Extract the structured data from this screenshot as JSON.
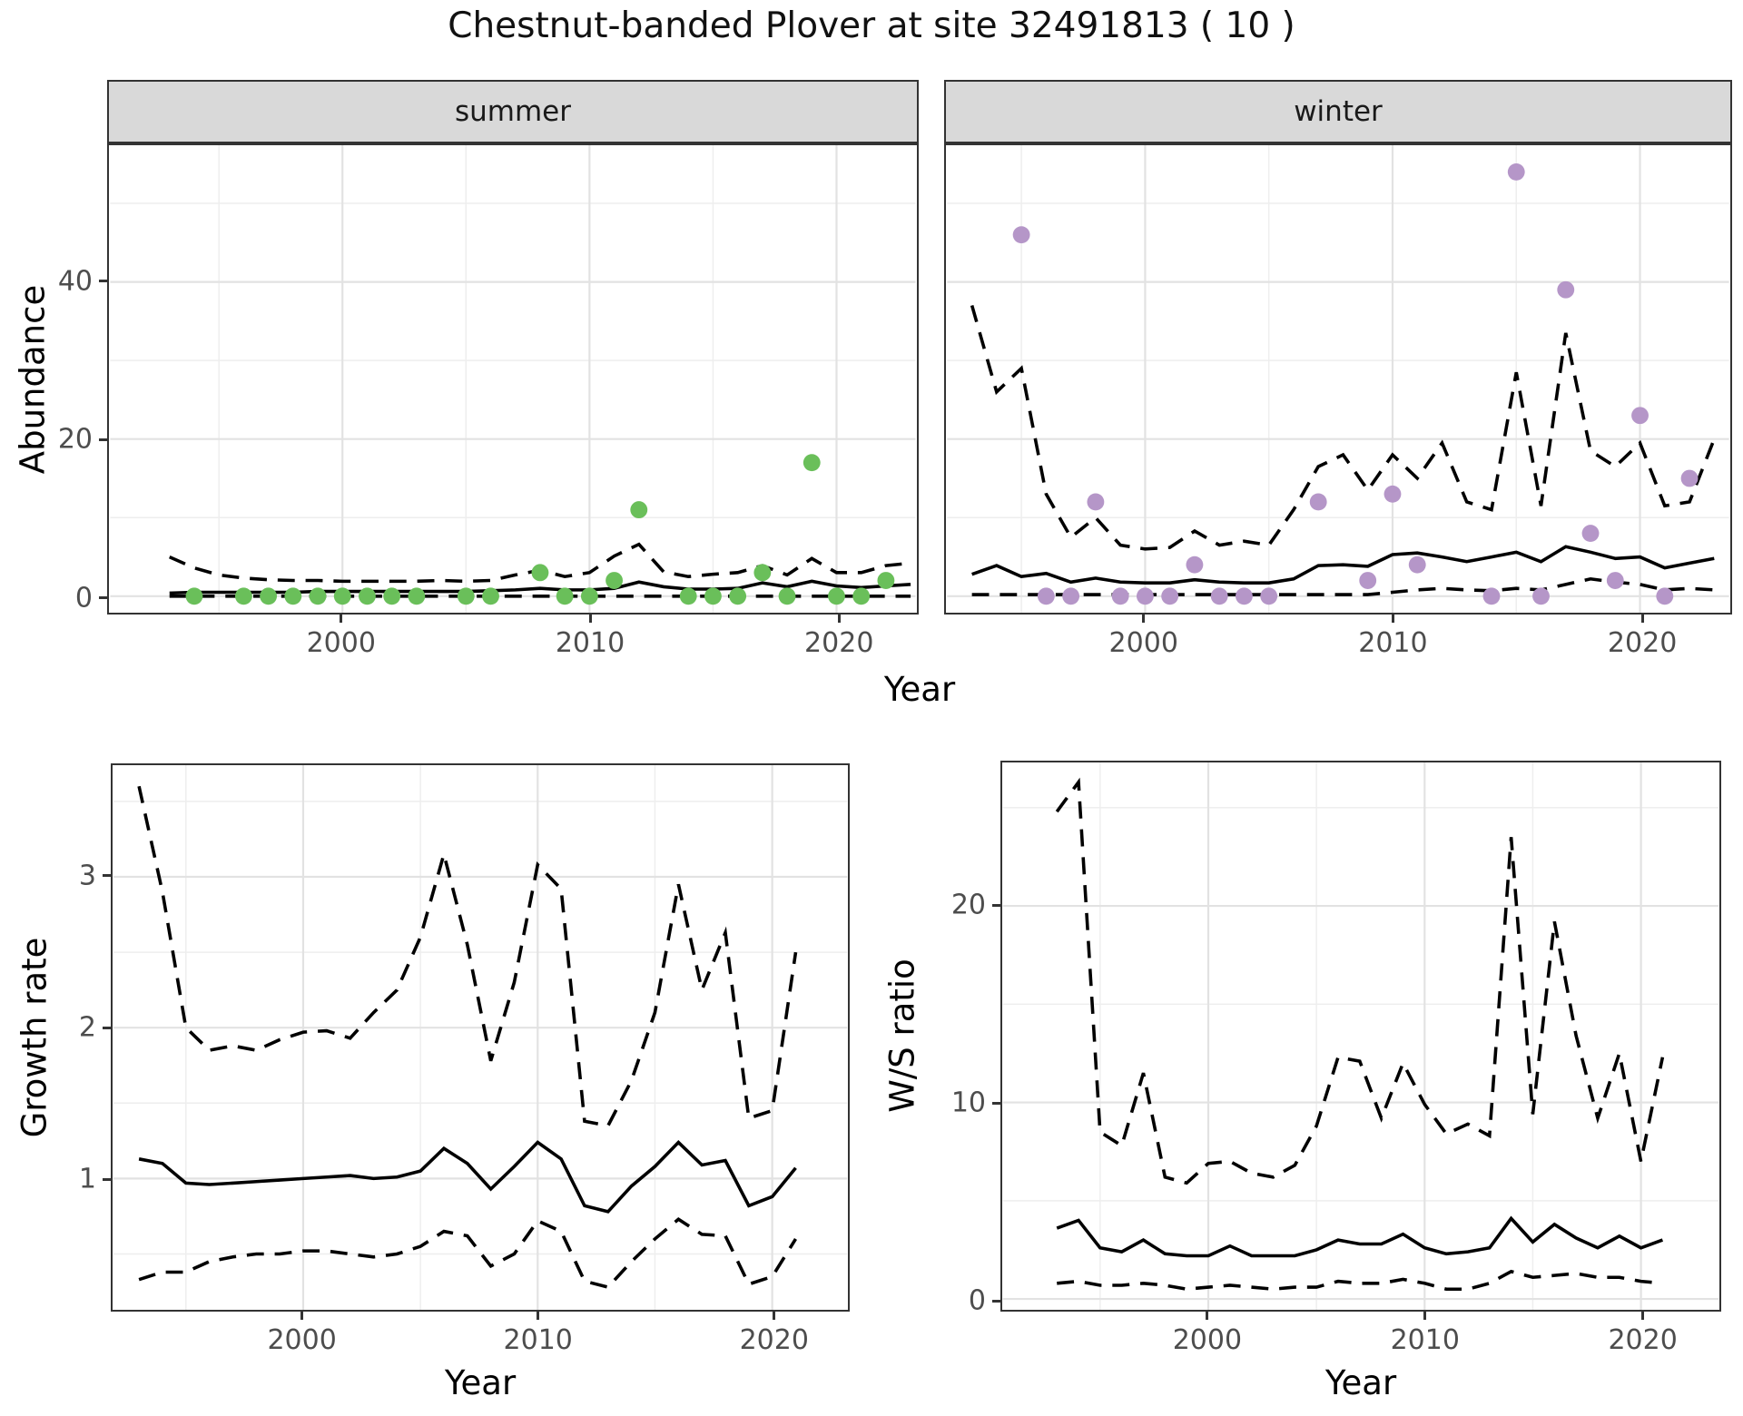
{
  "title": "Chestnut-banded Plover at site 32491813 ( 10 )",
  "axes": {
    "top_y_label": "Abundance",
    "top_x_label": "Year",
    "bottom_left_y_label": "Growth rate",
    "bottom_left_x_label": "Year",
    "bottom_right_y_label": "W/S ratio",
    "bottom_right_x_label": "Year"
  },
  "facets": {
    "left": "summer",
    "right": "winter"
  },
  "colors": {
    "summer_point": "#6abf5a",
    "winter_point": "#b596c8",
    "line": "#000000",
    "grid_major": "#e2e2e2",
    "grid_minor": "#eeeeee",
    "strip_bg": "#d9d9d9",
    "panel_border": "#333333",
    "axis_text": "#4d4d4d"
  },
  "chart_data": [
    {
      "id": "summer",
      "type": "line",
      "facet_label": "summer",
      "x_label": "Year",
      "y_label": "Abundance",
      "xlim": [
        1990.6,
        2023.2
      ],
      "ylim": [
        -2.1,
        57.4
      ],
      "x_ticks": [
        2000,
        2010,
        2020
      ],
      "x_minor": [
        1995,
        2005,
        2015
      ],
      "y_ticks": [
        0,
        20,
        40
      ],
      "y_minor": [
        10,
        30,
        50
      ],
      "line_years": [
        1993,
        1994,
        1995,
        1996,
        1997,
        1998,
        1999,
        2000,
        2001,
        2002,
        2003,
        2004,
        2005,
        2006,
        2007,
        2008,
        2009,
        2010,
        2011,
        2012,
        2013,
        2014,
        2015,
        2016,
        2017,
        2018,
        2019,
        2020,
        2021,
        2022,
        2023
      ],
      "median": [
        0.4,
        0.5,
        0.5,
        0.5,
        0.5,
        0.5,
        0.6,
        0.6,
        0.6,
        0.6,
        0.6,
        0.6,
        0.6,
        0.7,
        0.8,
        1.0,
        0.8,
        0.8,
        1.0,
        1.8,
        1.2,
        0.9,
        0.9,
        1.0,
        1.7,
        1.2,
        1.9,
        1.3,
        1.1,
        1.3,
        1.5
      ],
      "upper": [
        5.0,
        3.6,
        2.7,
        2.3,
        2.1,
        2.0,
        2.0,
        1.9,
        1.9,
        1.9,
        1.9,
        2.0,
        1.9,
        2.0,
        2.7,
        3.3,
        2.5,
        3.0,
        5.1,
        6.6,
        3.1,
        2.5,
        2.8,
        3.0,
        3.9,
        2.7,
        4.8,
        3.0,
        3.0,
        3.9,
        4.2
      ],
      "lower": [
        0,
        0,
        0,
        0,
        0,
        0,
        0,
        0,
        0,
        0,
        0,
        0,
        0,
        0,
        0,
        0,
        0,
        0,
        0,
        0,
        0,
        0,
        0,
        0,
        0,
        0,
        0,
        0,
        0,
        0,
        0
      ],
      "points": [
        [
          1994,
          0
        ],
        [
          1996,
          0
        ],
        [
          1997,
          0
        ],
        [
          1998,
          0
        ],
        [
          1999,
          0
        ],
        [
          2000,
          0
        ],
        [
          2001,
          0
        ],
        [
          2002,
          0
        ],
        [
          2003,
          0
        ],
        [
          2005,
          0
        ],
        [
          2006,
          0
        ],
        [
          2008,
          3
        ],
        [
          2009,
          0
        ],
        [
          2010,
          0
        ],
        [
          2011,
          2
        ],
        [
          2012,
          11
        ],
        [
          2014,
          0
        ],
        [
          2015,
          0
        ],
        [
          2016,
          0
        ],
        [
          2017,
          3
        ],
        [
          2018,
          0
        ],
        [
          2019,
          17
        ],
        [
          2020,
          0
        ],
        [
          2021,
          0
        ],
        [
          2022,
          2
        ]
      ],
      "point_color": "#6abf5a"
    },
    {
      "id": "winter",
      "type": "line",
      "facet_label": "winter",
      "x_label": "Year",
      "y_label": "Abundance",
      "xlim": [
        1992.0,
        2023.6
      ],
      "ylim": [
        -2.1,
        57.4
      ],
      "x_ticks": [
        2000,
        2010,
        2020
      ],
      "x_minor": [
        1995,
        2005,
        2015
      ],
      "y_ticks": [
        0,
        20,
        40
      ],
      "y_minor": [
        10,
        30,
        50
      ],
      "line_years": [
        1993,
        1994,
        1995,
        1996,
        1997,
        1998,
        1999,
        2000,
        2001,
        2002,
        2003,
        2004,
        2005,
        2006,
        2007,
        2008,
        2009,
        2010,
        2011,
        2012,
        2013,
        2014,
        2015,
        2016,
        2017,
        2018,
        2019,
        2020,
        2021,
        2022,
        2023
      ],
      "median": [
        2.8,
        3.9,
        2.5,
        2.9,
        1.8,
        2.3,
        1.8,
        1.7,
        1.7,
        2.1,
        1.8,
        1.7,
        1.7,
        2.2,
        3.9,
        4.0,
        3.8,
        5.3,
        5.5,
        5.0,
        4.4,
        5.0,
        5.6,
        4.4,
        6.3,
        5.6,
        4.8,
        5.0,
        3.6,
        4.2,
        4.8
      ],
      "upper": [
        37,
        26,
        29,
        13,
        7.5,
        10,
        6.5,
        6.0,
        6.2,
        8.3,
        6.5,
        7.0,
        6.5,
        11,
        16.5,
        18,
        13.5,
        18,
        15,
        19.5,
        12,
        11,
        28.5,
        11.5,
        33.5,
        18.5,
        16.5,
        19.5,
        11.5,
        12,
        20
      ],
      "lower": [
        0.2,
        0.2,
        0.2,
        0.2,
        0.2,
        0.2,
        0.2,
        0.2,
        0.2,
        0.2,
        0.2,
        0.2,
        0.2,
        0.2,
        0.2,
        0.2,
        0.2,
        0.5,
        0.8,
        1.0,
        0.8,
        0.7,
        1.0,
        0.8,
        1.5,
        2.2,
        1.8,
        1.5,
        0.8,
        1.0,
        0.8
      ],
      "points": [
        [
          1995,
          46
        ],
        [
          1996,
          0
        ],
        [
          1997,
          0
        ],
        [
          1998,
          12
        ],
        [
          1999,
          0
        ],
        [
          2000,
          0
        ],
        [
          2001,
          0
        ],
        [
          2002,
          4
        ],
        [
          2003,
          0
        ],
        [
          2004,
          0
        ],
        [
          2005,
          0
        ],
        [
          2007,
          12
        ],
        [
          2009,
          2
        ],
        [
          2010,
          13
        ],
        [
          2011,
          4
        ],
        [
          2014,
          0
        ],
        [
          2015,
          54
        ],
        [
          2016,
          0
        ],
        [
          2017,
          39
        ],
        [
          2018,
          8
        ],
        [
          2019,
          2
        ],
        [
          2020,
          23
        ],
        [
          2021,
          0
        ],
        [
          2022,
          15
        ]
      ],
      "point_color": "#b596c8"
    },
    {
      "id": "growth",
      "type": "line",
      "facet_label": null,
      "x_label": "Year",
      "y_label": "Growth rate",
      "xlim": [
        1991.9,
        2023.2
      ],
      "ylim": [
        0.13,
        3.74
      ],
      "x_ticks": [
        2000,
        2010,
        2020
      ],
      "x_minor": [
        1995,
        2005,
        2015
      ],
      "y_ticks": [
        1,
        2,
        3
      ],
      "y_minor": [
        0.5,
        1.5,
        2.5,
        3.5
      ],
      "line_years": [
        1993,
        1994,
        1995,
        1996,
        1997,
        1998,
        1999,
        2000,
        2001,
        2002,
        2003,
        2004,
        2005,
        2006,
        2007,
        2008,
        2009,
        2010,
        2011,
        2012,
        2013,
        2014,
        2015,
        2016,
        2017,
        2018,
        2019,
        2020,
        2021
      ],
      "median": [
        1.13,
        1.1,
        0.97,
        0.96,
        0.97,
        0.98,
        0.99,
        1.0,
        1.01,
        1.02,
        1.0,
        1.01,
        1.05,
        1.2,
        1.1,
        0.93,
        1.08,
        1.24,
        1.13,
        0.82,
        0.78,
        0.95,
        1.08,
        1.24,
        1.09,
        1.12,
        0.82,
        0.88,
        1.07
      ],
      "upper": [
        3.6,
        2.9,
        2.0,
        1.85,
        1.88,
        1.85,
        1.92,
        1.97,
        1.98,
        1.93,
        2.1,
        2.25,
        2.6,
        3.15,
        2.55,
        1.78,
        2.3,
        3.08,
        2.92,
        1.38,
        1.35,
        1.65,
        2.1,
        2.95,
        2.25,
        2.63,
        1.4,
        1.45,
        2.5
      ],
      "lower": [
        0.33,
        0.38,
        0.38,
        0.45,
        0.48,
        0.5,
        0.5,
        0.52,
        0.52,
        0.5,
        0.48,
        0.5,
        0.55,
        0.65,
        0.62,
        0.42,
        0.5,
        0.72,
        0.65,
        0.32,
        0.28,
        0.45,
        0.6,
        0.73,
        0.63,
        0.62,
        0.3,
        0.35,
        0.6
      ],
      "points": [],
      "point_color": "#000000"
    },
    {
      "id": "ws",
      "type": "line",
      "facet_label": null,
      "x_label": "Year",
      "y_label": "W/S ratio",
      "xlim": [
        1990.5,
        2023.6
      ],
      "ylim": [
        -0.55,
        27.3
      ],
      "x_ticks": [
        2000,
        2010,
        2020
      ],
      "x_minor": [
        1995,
        2005,
        2015
      ],
      "y_ticks": [
        0,
        10,
        20
      ],
      "y_minor": [
        5,
        15,
        25
      ],
      "line_years": [
        1993,
        1994,
        1995,
        1996,
        1997,
        1998,
        1999,
        2000,
        2001,
        2002,
        2003,
        2004,
        2005,
        2006,
        2007,
        2008,
        2009,
        2010,
        2011,
        2012,
        2013,
        2014,
        2015,
        2016,
        2017,
        2018,
        2019,
        2020,
        2021
      ],
      "median": [
        3.6,
        4.0,
        2.6,
        2.4,
        3.0,
        2.3,
        2.2,
        2.2,
        2.7,
        2.2,
        2.2,
        2.2,
        2.5,
        3.0,
        2.8,
        2.8,
        3.3,
        2.6,
        2.3,
        2.4,
        2.6,
        4.1,
        2.9,
        3.8,
        3.1,
        2.6,
        3.2,
        2.6,
        3.0
      ],
      "upper": [
        24.8,
        26.3,
        8.5,
        7.8,
        11.5,
        6.2,
        5.9,
        6.9,
        7.0,
        6.4,
        6.2,
        6.8,
        8.8,
        12.3,
        12.1,
        9.2,
        12.0,
        9.9,
        8.4,
        8.9,
        8.3,
        23.5,
        9.4,
        19.2,
        13.4,
        9.2,
        12.5,
        7.0,
        12.3
      ],
      "lower": [
        0.8,
        0.9,
        0.7,
        0.7,
        0.8,
        0.7,
        0.5,
        0.6,
        0.7,
        0.6,
        0.5,
        0.6,
        0.6,
        0.9,
        0.8,
        0.8,
        1.0,
        0.8,
        0.5,
        0.5,
        0.8,
        1.4,
        1.1,
        1.2,
        1.3,
        1.1,
        1.1,
        0.9,
        0.8
      ],
      "points": [],
      "point_color": "#000000"
    }
  ]
}
